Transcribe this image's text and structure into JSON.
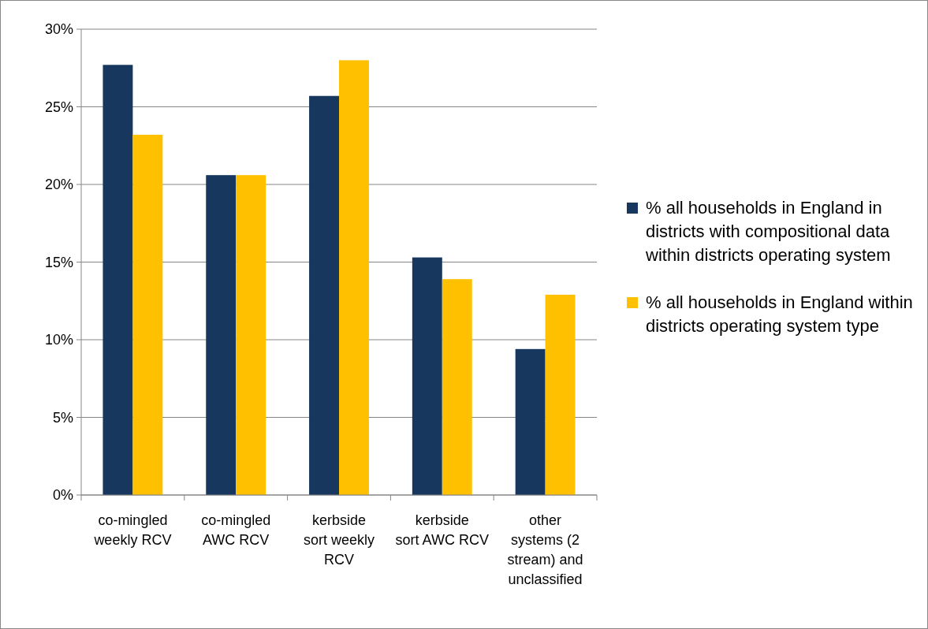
{
  "chart_data": {
    "type": "bar",
    "categories": [
      "co-mingled weekly RCV",
      "co-mingled AWC RCV",
      "kerbside sort weekly RCV",
      "kerbside sort AWC RCV",
      "other systems (2 stream) and unclassified"
    ],
    "series": [
      {
        "name": "% all households in England in districts with compositional data within districts operating system",
        "color": "#17375e",
        "values": [
          27.7,
          20.6,
          25.7,
          15.3,
          9.4
        ]
      },
      {
        "name": "% all households in England within districts operating system type",
        "color": "#ffc000",
        "values": [
          23.2,
          20.6,
          28.0,
          13.9,
          12.9
        ]
      }
    ],
    "ylim": [
      0,
      30
    ],
    "yticks": [
      {
        "value": 0,
        "label": "0%"
      },
      {
        "value": 5,
        "label": "5%"
      },
      {
        "value": 10,
        "label": "10%"
      },
      {
        "value": 15,
        "label": "15%"
      },
      {
        "value": 20,
        "label": "20%"
      },
      {
        "value": 25,
        "label": "25%"
      },
      {
        "value": 30,
        "label": "30%"
      }
    ],
    "grid": "y",
    "legend": "right"
  }
}
